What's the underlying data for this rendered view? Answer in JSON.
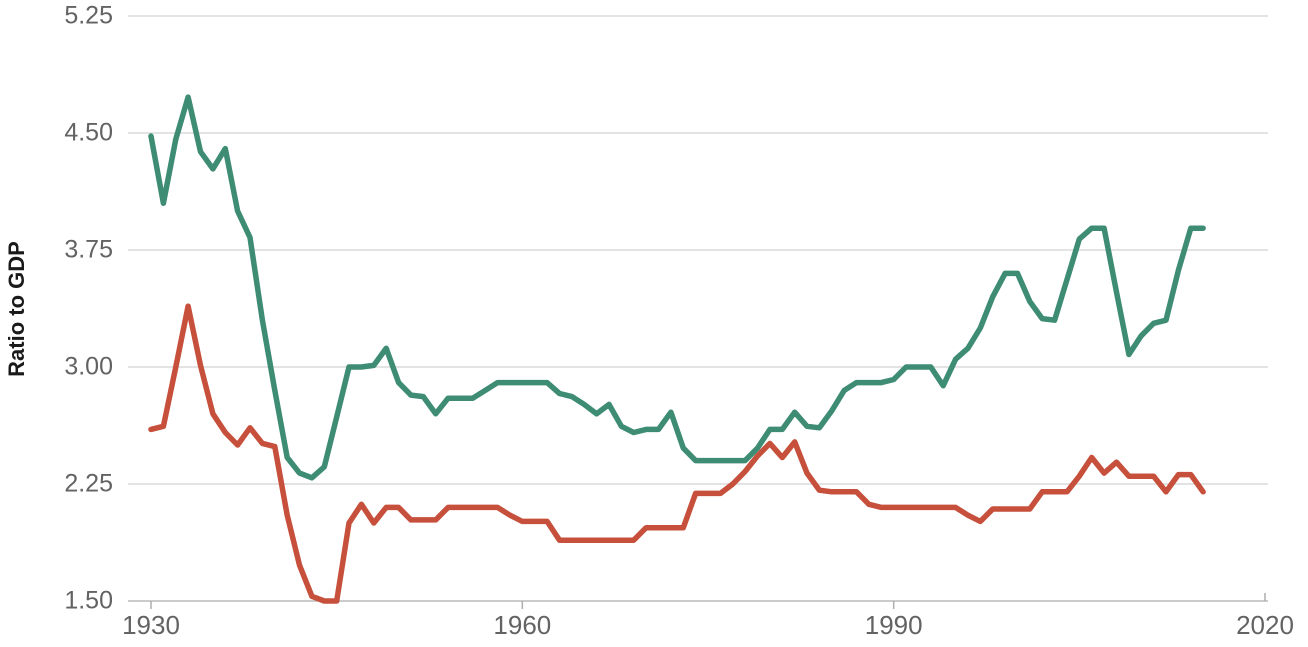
{
  "chart_data": {
    "type": "line",
    "title": "",
    "xlabel": "",
    "ylabel": "Ratio to GDP",
    "grid": "horizontal",
    "legend": "none",
    "ylim": [
      1.5,
      5.25
    ],
    "xlim": [
      1928,
      2022
    ],
    "y_ticks": [
      "1.50",
      "2.25",
      "3.00",
      "3.75",
      "4.50",
      "5.25"
    ],
    "y_tick_values": [
      1.5,
      2.25,
      3.0,
      3.75,
      4.5,
      5.25
    ],
    "x_ticks": [
      "1930",
      "1960",
      "1990",
      "2020"
    ],
    "x_tick_values": [
      1930,
      1960,
      1990,
      2020
    ],
    "years": [
      1930,
      1931,
      1932,
      1933,
      1934,
      1935,
      1936,
      1937,
      1938,
      1939,
      1940,
      1941,
      1942,
      1943,
      1944,
      1945,
      1946,
      1947,
      1948,
      1949,
      1950,
      1951,
      1952,
      1953,
      1954,
      1955,
      1956,
      1957,
      1958,
      1959,
      1960,
      1961,
      1962,
      1963,
      1964,
      1965,
      1966,
      1967,
      1968,
      1969,
      1970,
      1971,
      1972,
      1973,
      1974,
      1975,
      1976,
      1977,
      1978,
      1979,
      1980,
      1981,
      1982,
      1983,
      1984,
      1985,
      1986,
      1987,
      1988,
      1989,
      1990,
      1991,
      1992,
      1993,
      1994,
      1995,
      1996,
      1997,
      1998,
      1999,
      2000,
      2001,
      2002,
      2003,
      2004,
      2005,
      2006,
      2007,
      2008,
      2009,
      2010,
      2011,
      2012,
      2013,
      2014,
      2015
    ],
    "series": [
      {
        "name": "green-series",
        "color": "#3E8C74",
        "values": [
          4.48,
          4.05,
          4.46,
          4.73,
          4.38,
          4.27,
          4.4,
          4.0,
          3.83,
          3.3,
          2.85,
          2.42,
          2.32,
          2.29,
          2.36,
          2.68,
          3.0,
          3.0,
          3.01,
          3.12,
          2.9,
          2.82,
          2.81,
          2.7,
          2.8,
          2.8,
          2.8,
          2.85,
          2.9,
          2.9,
          2.9,
          2.9,
          2.9,
          2.83,
          2.81,
          2.76,
          2.7,
          2.76,
          2.62,
          2.58,
          2.6,
          2.6,
          2.71,
          2.48,
          2.4,
          2.4,
          2.4,
          2.4,
          2.4,
          2.48,
          2.6,
          2.6,
          2.71,
          2.62,
          2.61,
          2.72,
          2.85,
          2.9,
          2.9,
          2.9,
          2.92,
          3.0,
          3.0,
          3.0,
          2.88,
          3.05,
          3.12,
          3.25,
          3.45,
          3.6,
          3.6,
          3.42,
          3.31,
          3.3,
          3.56,
          3.82,
          3.89,
          3.89,
          3.48,
          3.08,
          3.2,
          3.28,
          3.3,
          3.62,
          3.89,
          3.89
        ]
      },
      {
        "name": "red-series",
        "color": "#C6503B",
        "values": [
          2.6,
          2.62,
          3.0,
          3.39,
          3.01,
          2.7,
          2.58,
          2.5,
          2.61,
          2.51,
          2.49,
          2.05,
          1.73,
          1.53,
          1.5,
          1.5,
          2.0,
          2.12,
          2.0,
          2.1,
          2.1,
          2.02,
          2.02,
          2.02,
          2.1,
          2.1,
          2.1,
          2.1,
          2.1,
          2.05,
          2.01,
          2.01,
          2.01,
          1.89,
          1.89,
          1.89,
          1.89,
          1.89,
          1.89,
          1.89,
          1.97,
          1.97,
          1.97,
          1.97,
          2.19,
          2.19,
          2.19,
          2.25,
          2.33,
          2.43,
          2.51,
          2.42,
          2.52,
          2.32,
          2.21,
          2.2,
          2.2,
          2.2,
          2.12,
          2.1,
          2.1,
          2.1,
          2.1,
          2.1,
          2.1,
          2.1,
          2.05,
          2.01,
          2.09,
          2.09,
          2.09,
          2.09,
          2.2,
          2.2,
          2.2,
          2.3,
          2.42,
          2.32,
          2.39,
          2.3,
          2.3,
          2.3,
          2.2,
          2.31,
          2.31,
          2.2
        ]
      }
    ],
    "colors": {
      "gridline": "#D2D2D2",
      "axis_line": "#ADADAD",
      "tick_label": "#636363",
      "axis_title": "#1A1A1A",
      "background": "#FFFFFF"
    }
  }
}
